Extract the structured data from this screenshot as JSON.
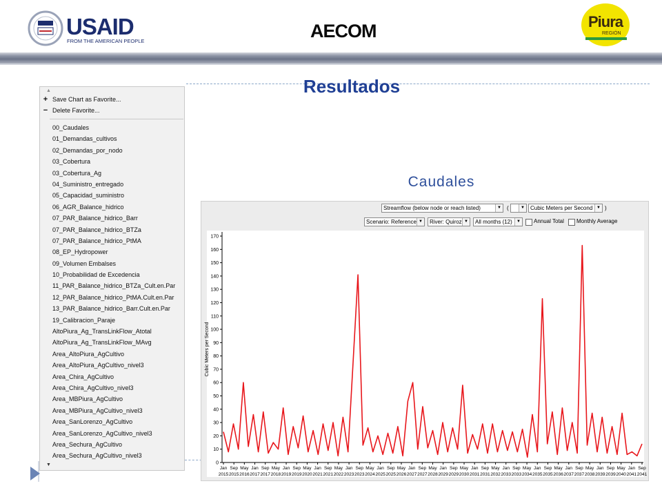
{
  "header": {
    "usaid_name": "USAID",
    "usaid_tagline": "FROM THE AMERICAN PEOPLE",
    "aecom": "AECOM",
    "piura_name": "Piura",
    "piura_sub": "REGIÓN"
  },
  "title": "Resultados",
  "subtitle": "Caudales",
  "menu": {
    "save_label": "Save Chart as Favorite...",
    "delete_label": "Delete Favorite...",
    "items": [
      "00_Caudales",
      "01_Demandas_cultivos",
      "02_Demandas_por_nodo",
      "03_Cobertura",
      "03_Cobertura_Ag",
      "04_Suministro_entregado",
      "05_Capacidad_suministro",
      "06_AGR_Balance_hidrico",
      "07_PAR_Balance_hidrico_Barr",
      "07_PAR_Balance_hidrico_BTZa",
      "07_PAR_Balance_hidrico_PtMA",
      "08_EP_Hydropower",
      "09_Volumen Embalses",
      "10_Probabilidad de Excedencia",
      "11_PAR_Balance_hidrico_BTZa_Cult.en.Par",
      "12_PAR_Balance_hidrico_PtMA.Cult.en.Par",
      "13_PAR_Balance_hidrico_Barr.Cult.en.Par",
      "19_Calibracion_Paraje",
      "AltoPiura_Ag_TransLinkFlow_Atotal",
      "AltoPiura_Ag_TransLinkFlow_MAvg",
      "Area_AltoPiura_AgCultivo",
      "Area_AltoPiura_AgCultivo_nivel3",
      "Area_Chira_AgCultivo",
      "Area_Chira_AgCultivo_nivel3",
      "Area_MBPiura_AgCultivo",
      "Area_MBPiura_AgCultivo_nivel3",
      "Area_SanLorenzo_AgCultivo",
      "Area_SanLorenzo_AgCultivo_nivel3",
      "Area_Sechura_AgCultivo",
      "Area_Sechura_AgCultivo_nivel3"
    ]
  },
  "controls": {
    "variable": "Streamflow (below node or reach listed)",
    "paren_open": "(",
    "paren_close": ")",
    "unit": "Cubic Meters per Second",
    "scenario": "Scenario: Reference",
    "river": "River: Quiroz",
    "months": "All months (12)",
    "annual_total": "Annual Total",
    "monthly_average": "Monthly Average"
  },
  "chart_data": {
    "type": "line",
    "ylabel": "Cubic Meters per Second",
    "ylim": [
      0,
      170
    ],
    "yticks": [
      0,
      10,
      20,
      30,
      40,
      50,
      60,
      70,
      80,
      90,
      100,
      110,
      120,
      130,
      140,
      150,
      160,
      170
    ],
    "line_color": "#e8161b",
    "grid": false,
    "xtick_months": [
      "Jan",
      "Sep",
      "May",
      "Jan",
      "Sep",
      "May",
      "Jan",
      "Sep",
      "May",
      "Jan",
      "Sep",
      "May",
      "Jan",
      "Sep",
      "May",
      "Jan",
      "Sep",
      "May",
      "Jan",
      "Sep",
      "May",
      "Jan",
      "Sep",
      "May",
      "Jan",
      "Sep",
      "May",
      "Jan",
      "Sep",
      "May",
      "Jan",
      "Sep",
      "May",
      "Jan",
      "Sep",
      "May",
      "Jan",
      "Sep",
      "May",
      "Jan",
      "Sep"
    ],
    "xtick_years": [
      "2015",
      "2015",
      "2016",
      "2017",
      "2017",
      "2018",
      "2019",
      "2019",
      "2020",
      "2021",
      "2021",
      "2022",
      "2023",
      "2023",
      "2024",
      "2025",
      "2025",
      "2026",
      "2027",
      "2027",
      "2028",
      "2029",
      "2029",
      "2030",
      "2031",
      "2031",
      "2032",
      "2033",
      "2033",
      "2034",
      "2035",
      "2035",
      "2036",
      "2037",
      "2037",
      "2038",
      "2039",
      "2039",
      "2040",
      "2041",
      "2041"
    ],
    "series": [
      {
        "x_start": "2015-01",
        "x_step": "4 months",
        "values": [
          23,
          8,
          29,
          10,
          60,
          12,
          36,
          8,
          38,
          7,
          15,
          10,
          41,
          6,
          27,
          11,
          35,
          8,
          24,
          6,
          29,
          9,
          30,
          5,
          34,
          8,
          74,
          141,
          13,
          26,
          8,
          20,
          6,
          22,
          7,
          27,
          5,
          46,
          60,
          10,
          42,
          11,
          24,
          6,
          30,
          8,
          26,
          10,
          58,
          7,
          21,
          10,
          29,
          7,
          29,
          8,
          24,
          9,
          23,
          8,
          25,
          4,
          36,
          8,
          123,
          14,
          38,
          6,
          41,
          9,
          30,
          7,
          163,
          13,
          37,
          8,
          34,
          7,
          27,
          6,
          37,
          6,
          8,
          5,
          14
        ]
      }
    ]
  }
}
